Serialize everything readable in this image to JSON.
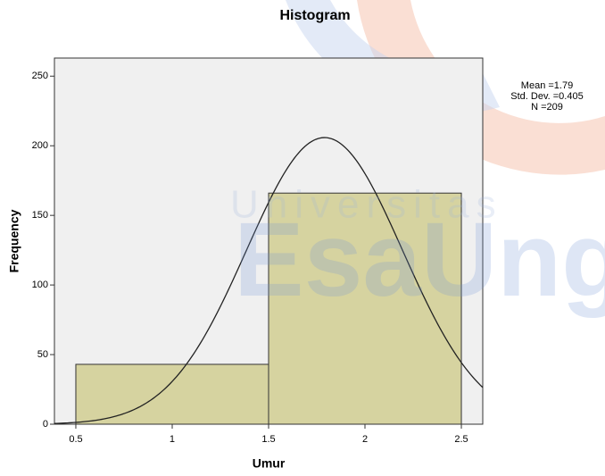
{
  "chart_data": {
    "type": "histogram",
    "title": "Histogram",
    "x_label": "Umur",
    "y_label": "Frequency",
    "bins": [
      0.5,
      1.5,
      2.5
    ],
    "counts": [
      43,
      166
    ],
    "color": "#d6d3a0",
    "xlim": [
      0.389,
      2.611
    ],
    "xticks": [
      0.5,
      1,
      1.5,
      2,
      2.5
    ],
    "ylim": [
      0,
      263
    ],
    "yticks": [
      0,
      50,
      100,
      150,
      200,
      250
    ],
    "normal_curve": {
      "mean": 1.79,
      "std_dev": 0.405,
      "n": 209,
      "labels": [
        "Mean =1.79",
        "Std. Dev. =0.405",
        "N =209"
      ]
    }
  },
  "watermark": {
    "line1": "Universitas",
    "line2": "EsaUng"
  }
}
